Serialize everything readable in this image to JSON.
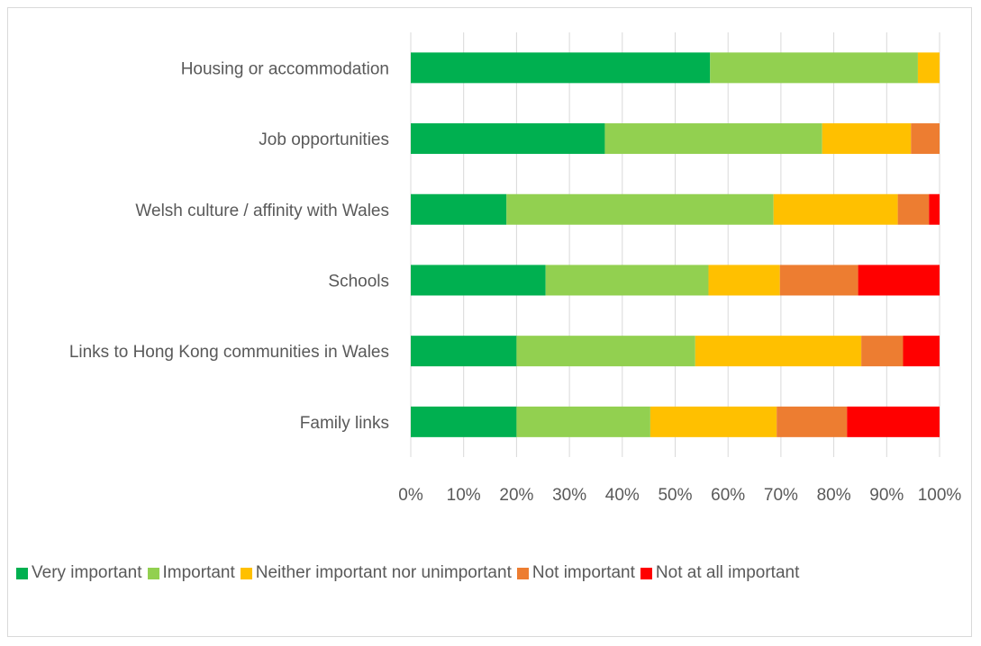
{
  "chart_data": {
    "type": "bar",
    "orientation": "horizontal",
    "stacked": "percent",
    "categories": [
      "Housing or accommodation",
      "Job opportunities",
      "Welsh culture / affinity with Wales",
      "Schools",
      "Links to Hong Kong communities in Wales",
      "Family links"
    ],
    "series": [
      {
        "name": "Very important",
        "color": "#00b050",
        "values": [
          56.6,
          36.7,
          18.1,
          25.5,
          20.0,
          20.0
        ]
      },
      {
        "name": "Important",
        "color": "#92d050",
        "values": [
          39.3,
          41.1,
          50.5,
          30.8,
          33.8,
          25.3
        ]
      },
      {
        "name": "Neither important nor unimportant",
        "color": "#ffc000",
        "values": [
          4.1,
          16.8,
          23.5,
          13.5,
          31.4,
          23.9
        ]
      },
      {
        "name": "Not important",
        "color": "#ed7d31",
        "values": [
          0.0,
          5.4,
          5.9,
          14.8,
          7.9,
          13.3
        ]
      },
      {
        "name": "Not at all important",
        "color": "#ff0000",
        "values": [
          0.0,
          0.0,
          2.0,
          15.4,
          6.9,
          17.5
        ]
      }
    ],
    "x_ticks": [
      "0%",
      "10%",
      "20%",
      "30%",
      "40%",
      "50%",
      "60%",
      "70%",
      "80%",
      "90%",
      "100%"
    ],
    "xlim": [
      0,
      100
    ],
    "grid": "vertical",
    "legend_position": "bottom"
  }
}
